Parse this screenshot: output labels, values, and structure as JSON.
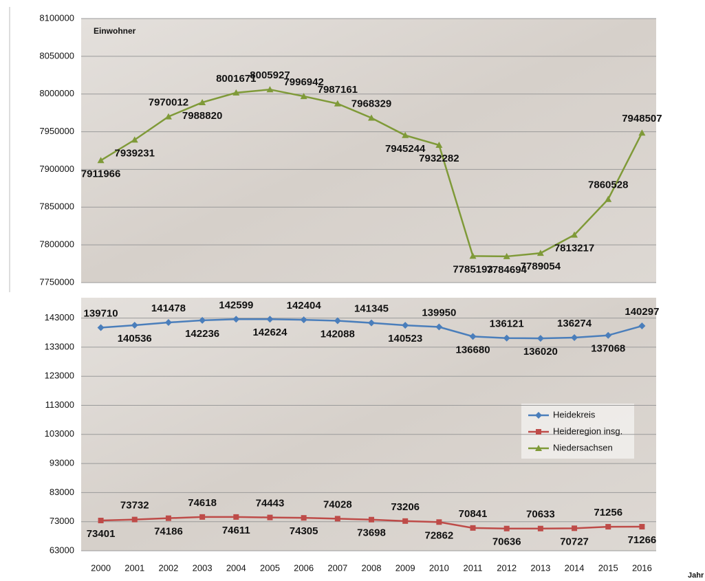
{
  "chart_data": [
    {
      "type": "line",
      "subtitle": "Einwohner",
      "ylim": [
        7750000,
        8100000
      ],
      "yticks": [
        7750000,
        7800000,
        7850000,
        7900000,
        7950000,
        8000000,
        8050000,
        8100000
      ],
      "grid": true,
      "series": [
        {
          "name": "Niedersachsen",
          "color": "#7f9a38",
          "marker": "triangle",
          "values": [
            7911966,
            7939231,
            7970012,
            7988820,
            8001671,
            8005927,
            7996942,
            7987161,
            7968329,
            7945244,
            7932282,
            7785193,
            7784694,
            7789054,
            7813217,
            7860528,
            7948507
          ]
        }
      ]
    },
    {
      "type": "line",
      "xlabel": "Jahr",
      "categories": [
        "2000",
        "2001",
        "2002",
        "2003",
        "2004",
        "2005",
        "2006",
        "2007",
        "2008",
        "2009",
        "2010",
        "2011",
        "2012",
        "2013",
        "2014",
        "2015",
        "2016"
      ],
      "ylim": [
        63000,
        150000
      ],
      "yticks": [
        63000,
        73000,
        83000,
        93000,
        103000,
        113000,
        123000,
        133000,
        143000
      ],
      "grid": true,
      "legend": "right",
      "series": [
        {
          "name": "Heidekreis",
          "color": "#4a7ebb",
          "marker": "diamond",
          "values": [
            139710,
            140536,
            141478,
            142236,
            142599,
            142624,
            142404,
            142088,
            141345,
            140523,
            139950,
            136680,
            136121,
            136020,
            136274,
            137068,
            140297
          ]
        },
        {
          "name": "Heideregion insg.",
          "color": "#be4b48",
          "marker": "square",
          "values": [
            73401,
            73732,
            74186,
            74618,
            74611,
            74443,
            74305,
            74028,
            73698,
            73206,
            72862,
            70841,
            70636,
            70633,
            70727,
            71256,
            71266
          ]
        }
      ]
    }
  ]
}
